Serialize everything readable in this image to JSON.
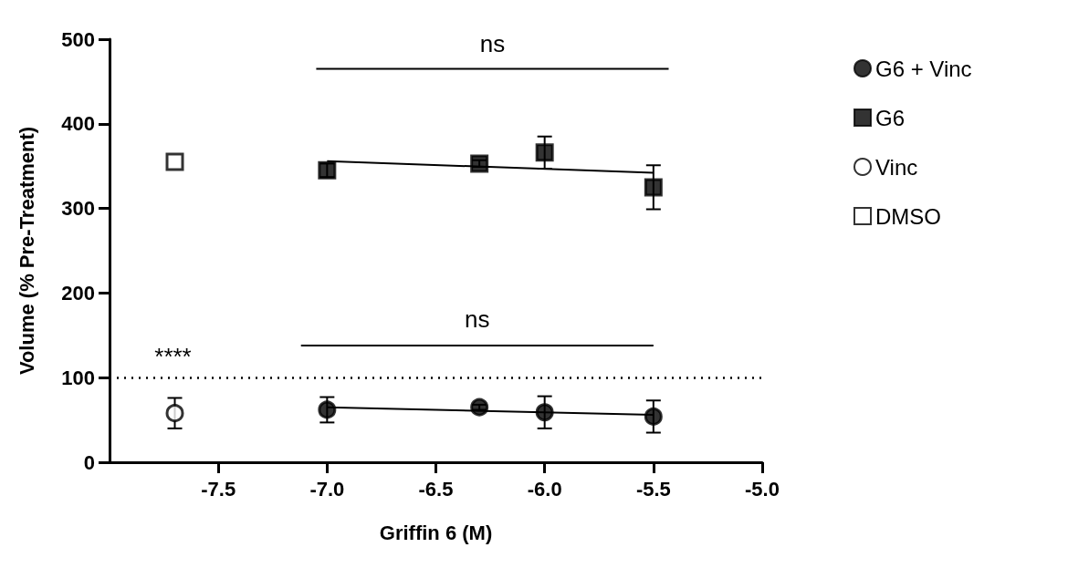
{
  "chart_data": {
    "type": "scatter",
    "xlabel": "Griffin 6 (M)",
    "ylabel": "Volume (% Pre-Treatment)",
    "xlim": [
      -8.0,
      -5.0
    ],
    "xticks": [
      {
        "value": -7.5,
        "label": "-7.5"
      },
      {
        "value": -7,
        "label": "-7.0"
      },
      {
        "value": -6.5,
        "label": "-6.5"
      },
      {
        "value": -6,
        "label": "-6.0"
      },
      {
        "value": -5.5,
        "label": "-5.5"
      },
      {
        "value": -5,
        "label": "-5.0"
      }
    ],
    "ylim": [
      0,
      500
    ],
    "yticks": [
      0,
      100,
      200,
      300,
      400,
      500
    ],
    "grid": false,
    "legend": "right",
    "series": [
      {
        "name": "G6 + Vinc",
        "color": "#000000",
        "marker": "circle",
        "x": [
          -7.0,
          -6.3,
          -6.0,
          -5.5
        ],
        "values": [
          62,
          65,
          59,
          54
        ],
        "errors": [
          15,
          3,
          19,
          19
        ]
      },
      {
        "name": "G6",
        "color": "#000000",
        "marker": "square",
        "x": [
          -7.0,
          -6.3,
          -6.0,
          -5.5
        ],
        "values": [
          345,
          353,
          366,
          325
        ],
        "errors": [
          8,
          4,
          19,
          26
        ]
      },
      {
        "name": "Vinc",
        "color": "#ffffff",
        "marker": "circle",
        "x": [
          -7.7
        ],
        "values": [
          58
        ],
        "errors": [
          18
        ]
      },
      {
        "name": "DMSO",
        "color": "#ffffff",
        "marker": "square",
        "x": [
          -7.7
        ],
        "values": [
          355
        ]
      },
      {
        "type": "line",
        "color": "#000000",
        "marker": "none",
        "x": [
          -7.0,
          -5.5
        ],
        "values": [
          65,
          56
        ]
      },
      {
        "type": "line",
        "color": "#000000",
        "marker": "none",
        "x": [
          -7.0,
          -5.5
        ],
        "values": [
          356,
          342
        ]
      }
    ],
    "ref_lines": [
      {
        "axis": "y",
        "value": 100,
        "color": "#000000",
        "line_style": "dotted"
      }
    ],
    "annotations": [
      "ns",
      "ns",
      "****"
    ]
  }
}
